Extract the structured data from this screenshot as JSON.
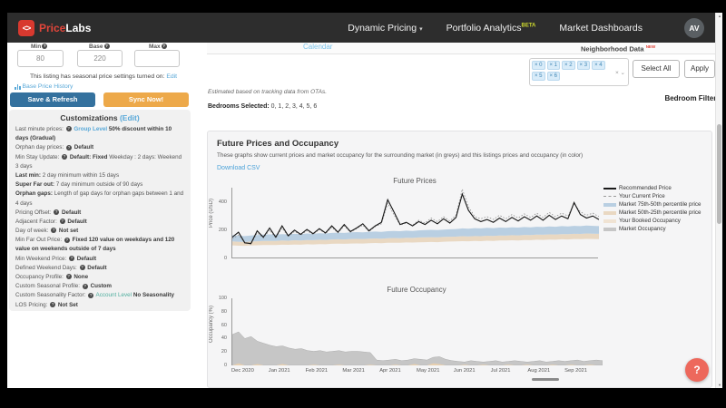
{
  "navbar": {
    "brand": {
      "name_red": "Price",
      "name_white": "Labs"
    },
    "items": [
      {
        "label": "Dynamic Pricing",
        "caret": "▾"
      },
      {
        "label": "Portfolio Analytics",
        "badge": "BETA"
      },
      {
        "label": "Market Dashboards"
      }
    ],
    "avatar": "AV"
  },
  "tabs": {
    "calendar": "Calendar"
  },
  "pricing_panel": {
    "fields": [
      {
        "label": "Min",
        "value": "80"
      },
      {
        "label": "Base",
        "value": "220"
      },
      {
        "label": "Max",
        "value": ""
      }
    ],
    "seasonal_note": "This listing has seasonal price settings turned on:",
    "seasonal_edit": "Edit",
    "history_link": "Base Price History",
    "save_button": "Save & Refresh",
    "sync_button": "Sync Now!"
  },
  "customizations": {
    "title": "Customizations",
    "edit": "(Edit)",
    "items": [
      {
        "label": "Last minute prices:",
        "label_bold": false,
        "q": true,
        "parts": [
          [
            "l",
            "Group Level"
          ],
          [
            "b",
            "50% discount within 10 days (Gradual)"
          ]
        ]
      },
      {
        "label": "Orphan day prices:",
        "label_bold": false,
        "q": true,
        "parts": [
          [
            "b",
            "Default"
          ]
        ]
      },
      {
        "label": "Min Stay Update:",
        "label_bold": false,
        "q": true,
        "parts": [
          [
            "b",
            "Default: Fixed"
          ],
          [
            "n",
            "Weekday : 2 days: Weekend 3 days"
          ]
        ]
      },
      {
        "label": "Last min:",
        "label_bold": true,
        "q": false,
        "parts": [
          [
            "n",
            "2 day minimum within 15 days"
          ]
        ]
      },
      {
        "label": "Super Far out:",
        "label_bold": true,
        "q": false,
        "parts": [
          [
            "n",
            "7 day minimum outside of 90 days"
          ]
        ]
      },
      {
        "label": "Orphan gaps:",
        "label_bold": true,
        "q": false,
        "parts": [
          [
            "n",
            "Length of gap days for orphan gaps between 1 and 4 days"
          ]
        ]
      },
      {
        "label": "Pricing Offset:",
        "label_bold": false,
        "q": true,
        "parts": [
          [
            "b",
            "Default"
          ]
        ]
      },
      {
        "label": "Adjacent Factor:",
        "label_bold": false,
        "q": true,
        "parts": [
          [
            "b",
            "Default"
          ]
        ]
      },
      {
        "label": "Day of week:",
        "label_bold": false,
        "q": true,
        "parts": [
          [
            "b",
            "Not set"
          ]
        ]
      },
      {
        "label": "Min Far Out Price:",
        "label_bold": false,
        "q": true,
        "parts": [
          [
            "b",
            "Fixed 120 value on weekdays and 120 value on weekends outside of 7 days"
          ]
        ]
      },
      {
        "label": "Min Weekend Price:",
        "label_bold": false,
        "q": true,
        "parts": [
          [
            "b",
            "Default"
          ]
        ]
      },
      {
        "label": "Defined Weekend Days:",
        "label_bold": false,
        "q": true,
        "parts": [
          [
            "b",
            "Default"
          ]
        ]
      },
      {
        "label": "Occupancy Profile:",
        "label_bold": false,
        "q": true,
        "parts": [
          [
            "b",
            "None"
          ]
        ]
      },
      {
        "label": "Custom Seasonal Profile:",
        "label_bold": false,
        "q": true,
        "parts": [
          [
            "b",
            "Custom"
          ]
        ]
      },
      {
        "label": "Custom Seasonality Factor:",
        "label_bold": false,
        "q": true,
        "parts": [
          [
            "g",
            "Account Level"
          ],
          [
            "b",
            "No Seasonality"
          ]
        ]
      },
      {
        "label": "LOS Pricing:",
        "label_bold": false,
        "q": true,
        "parts": [
          [
            "b",
            "Not Set"
          ]
        ]
      }
    ]
  },
  "listing_info": {
    "estimate_note": "Estimated based on tracking data from OTAs.",
    "bedrooms_selected_label": "Bedrooms Selected:",
    "bedrooms_selected_value": "0, 1, 2, 3, 4, 5, 6"
  },
  "neighborhood": {
    "title": "Neighborhood Data",
    "badge": "NEW",
    "chips": [
      "0",
      "1",
      "2",
      "3",
      "4",
      "5",
      "6"
    ],
    "chip_remove": "×",
    "clear_icon": "×",
    "dropdown_icon": "⌄",
    "select_all": "Select All",
    "apply": "Apply",
    "bedroom_filter_label": "Bedroom Filter:"
  },
  "chart_card": {
    "title": "Future Prices and Occupancy",
    "subtitle": "These graphs show current prices and market occupancy for the surrounding market (in greys) and this listings prices and occupancy (in color)",
    "download": "Download CSV"
  },
  "help_button": "?",
  "colors": {
    "brand_red": "#d8392f",
    "navbar_bg": "#2d2d2d",
    "link_blue": "#58a8d8",
    "save_blue": "#34719e",
    "sync_orange": "#eda94a",
    "help_coral": "#ed685c",
    "band_blue": "#b9cfe2",
    "band_tan": "#e9d8c2",
    "booked_beige": "#f0e3d3",
    "market_grey": "#c6c6c6"
  },
  "chart_data": [
    {
      "type": "line",
      "title": "Future Prices",
      "ylabel": "Price (USD)",
      "ylim": [
        0,
        500
      ],
      "yticks": [
        0,
        200,
        400
      ],
      "x_range": [
        "Dec 2020",
        "Sep 2021"
      ],
      "grid": false,
      "legend_position": "right",
      "legend": [
        {
          "label": "Recommended Price",
          "swatch": "solid",
          "color": "#1a1a1a"
        },
        {
          "label": "Your Current Price",
          "swatch": "dashed",
          "color": "#999999"
        },
        {
          "label": "Market 75th-50th percentile price",
          "swatch": "fill",
          "color": "#b9cfe2"
        },
        {
          "label": "Market 50th-25th percentile price",
          "swatch": "fill",
          "color": "#e9d8c2"
        },
        {
          "label": "Your Booked Occupancy",
          "swatch": "fill",
          "color": "#f0e3d3"
        },
        {
          "label": "Market Occupancy",
          "swatch": "fill",
          "color": "#c6c6c6"
        }
      ],
      "series": [
        {
          "name": "Recommended Price",
          "key": "recommended",
          "values": [
            150,
            185,
            110,
            105,
            195,
            150,
            215,
            150,
            230,
            160,
            200,
            170,
            205,
            175,
            210,
            180,
            230,
            185,
            240,
            190,
            215,
            245,
            195,
            230,
            255,
            415,
            330,
            240,
            255,
            230,
            260,
            240,
            270,
            245,
            280,
            250,
            290,
            455,
            340,
            280,
            260,
            275,
            255,
            285,
            260,
            290,
            265,
            295,
            270,
            300,
            270,
            305,
            275,
            300,
            280,
            395,
            310,
            285,
            300,
            275
          ]
        },
        {
          "name": "Your Current Price",
          "key": "current",
          "values": [
            140,
            165,
            115,
            100,
            180,
            145,
            200,
            145,
            215,
            155,
            190,
            165,
            195,
            170,
            205,
            175,
            220,
            180,
            230,
            185,
            210,
            235,
            190,
            225,
            245,
            390,
            310,
            235,
            250,
            235,
            270,
            250,
            285,
            260,
            295,
            265,
            305,
            490,
            365,
            295,
            280,
            295,
            275,
            305,
            280,
            310,
            285,
            315,
            290,
            320,
            290,
            325,
            295,
            320,
            300,
            385,
            330,
            305,
            320,
            295
          ]
        },
        {
          "name": "Market 75th percentile",
          "key": "p75",
          "values": [
            165,
            160,
            158,
            162,
            165,
            168,
            170,
            168,
            172,
            170,
            174,
            172,
            176,
            174,
            178,
            176,
            180,
            182,
            180,
            184,
            186,
            184,
            188,
            190,
            188,
            192,
            194,
            192,
            196,
            194,
            198,
            200,
            202,
            200,
            204,
            206,
            208,
            212,
            210,
            214,
            212,
            216,
            214,
            218,
            216,
            220,
            218,
            222,
            220,
            224,
            222,
            226,
            224,
            228,
            226,
            230,
            228,
            232,
            230,
            228
          ]
        },
        {
          "name": "Market 50th percentile",
          "key": "p50",
          "values": [
            120,
            118,
            116,
            119,
            121,
            123,
            124,
            123,
            126,
            125,
            128,
            127,
            130,
            129,
            132,
            131,
            134,
            135,
            134,
            137,
            138,
            137,
            140,
            141,
            140,
            143,
            144,
            143,
            146,
            145,
            148,
            149,
            150,
            149,
            152,
            153,
            154,
            157,
            156,
            158,
            157,
            160,
            159,
            162,
            161,
            164,
            163,
            166,
            165,
            168,
            167,
            170,
            169,
            172,
            171,
            174,
            173,
            176,
            175,
            174
          ]
        },
        {
          "name": "Market 25th percentile",
          "key": "p25",
          "values": [
            92,
            90,
            89,
            91,
            93,
            94,
            95,
            94,
            97,
            96,
            98,
            97,
            100,
            99,
            101,
            100,
            103,
            104,
            103,
            105,
            106,
            105,
            108,
            109,
            108,
            110,
            111,
            110,
            113,
            112,
            114,
            115,
            116,
            115,
            118,
            119,
            120,
            122,
            121,
            123,
            122,
            125,
            124,
            127,
            126,
            128,
            127,
            130,
            129,
            132,
            131,
            133,
            132,
            135,
            134,
            137,
            136,
            138,
            137,
            136
          ]
        }
      ]
    },
    {
      "type": "area",
      "title": "Future Occupancy",
      "ylabel": "Occupancy (%)",
      "ylim": [
        0,
        100
      ],
      "yticks": [
        0,
        20,
        40,
        60,
        80,
        100
      ],
      "categories": [
        "Dec 2020",
        "Jan 2021",
        "Feb 2021",
        "Mar 2021",
        "Apr 2021",
        "May 2021",
        "Jun 2021",
        "Jul 2021",
        "Aug 2021",
        "Sep 2021"
      ],
      "grid": false,
      "series": [
        {
          "name": "Market Occupancy",
          "key": "market",
          "values": [
            46,
            50,
            40,
            43,
            36,
            33,
            30,
            28,
            29,
            26,
            24,
            25,
            22,
            21,
            22,
            20,
            21,
            22,
            20,
            21,
            21,
            20,
            19,
            8,
            7,
            8,
            9,
            7,
            8,
            10,
            9,
            8,
            12,
            13,
            9,
            7,
            6,
            5,
            7,
            6,
            5,
            6,
            7,
            5,
            6,
            7,
            6,
            5,
            6,
            7,
            5,
            6,
            7,
            6,
            7,
            8,
            6,
            7,
            8,
            7
          ]
        },
        {
          "name": "Your Booked Occupancy",
          "key": "booked",
          "values": [
            0,
            3,
            0,
            0,
            2,
            0,
            0,
            0,
            2,
            0,
            0,
            0,
            0,
            1,
            0,
            0,
            0,
            1,
            0,
            0,
            0,
            0,
            1,
            0,
            0,
            0,
            1,
            0,
            0,
            2,
            0,
            0,
            3,
            2,
            0,
            0,
            0,
            1,
            0,
            0,
            1,
            0,
            0,
            0,
            1,
            0,
            0,
            1,
            0,
            0,
            0,
            1,
            0,
            0,
            1,
            0,
            0,
            1,
            0,
            0
          ]
        }
      ]
    }
  ]
}
